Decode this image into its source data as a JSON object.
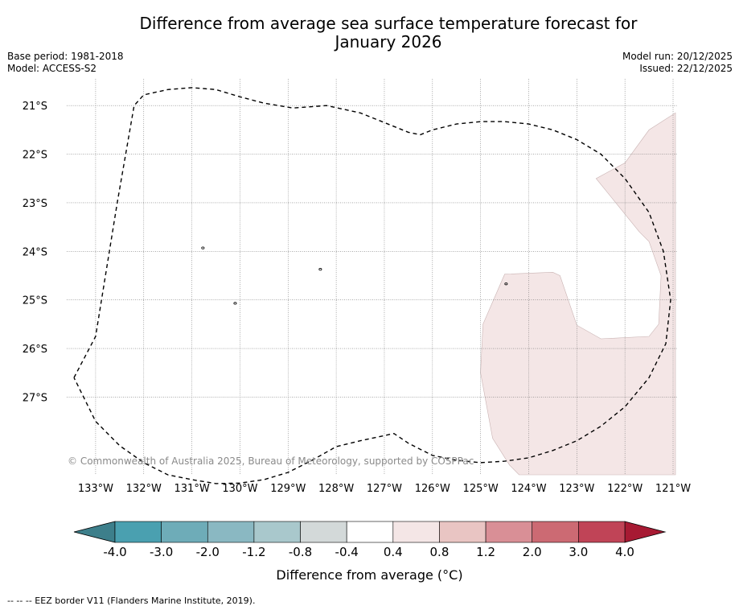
{
  "title_line1": "Difference from average sea surface temperature forecast for",
  "title_line2": "January 2026",
  "base_period": "Base period: 1981-2018",
  "model": "Model: ACCESS-S2",
  "model_run": "Model run: 20/12/2025",
  "issued": "Issued: 22/12/2025",
  "copyright": "© Commonwealth of Australia 2025, Bureau of Meteorology, supported by COSPPac",
  "map": {
    "lon_min": -133.6,
    "lon_max": -120.9,
    "lat_max": -20.45,
    "lat_min": -28.6,
    "lon_ticks": [
      {
        "value": -133,
        "label": "133°W"
      },
      {
        "value": -132,
        "label": "132°W"
      },
      {
        "value": -131,
        "label": "131°W"
      },
      {
        "value": -130,
        "label": "130°W"
      },
      {
        "value": -129,
        "label": "129°W"
      },
      {
        "value": -128,
        "label": "128°W"
      },
      {
        "value": -127,
        "label": "127°W"
      },
      {
        "value": -126,
        "label": "126°W"
      },
      {
        "value": -125,
        "label": "125°W"
      },
      {
        "value": -124,
        "label": "124°W"
      },
      {
        "value": -123,
        "label": "123°W"
      },
      {
        "value": -122,
        "label": "122°W"
      },
      {
        "value": -121,
        "label": "121°W"
      }
    ],
    "lat_ticks": [
      {
        "value": -21,
        "label": "21°S"
      },
      {
        "value": -22,
        "label": "22°S"
      },
      {
        "value": -23,
        "label": "23°S"
      },
      {
        "value": -24,
        "label": "24°S"
      },
      {
        "value": -25,
        "label": "25°S"
      },
      {
        "value": -26,
        "label": "26°S"
      },
      {
        "value": -27,
        "label": "27°S"
      }
    ],
    "anomaly_regions": [
      {
        "name": "east-warm-region",
        "class": "0.4 to 0.8",
        "color": "#f4e6e6",
        "coords": [
          [
            -122.0,
            -22.18
          ],
          [
            -121.5,
            -21.5
          ],
          [
            -120.95,
            -21.15
          ],
          [
            -120.95,
            -28.6
          ],
          [
            -124.2,
            -28.6
          ],
          [
            -124.4,
            -28.4
          ],
          [
            -124.75,
            -27.85
          ],
          [
            -125.0,
            -26.5
          ],
          [
            -124.95,
            -25.5
          ],
          [
            -124.5,
            -24.47
          ],
          [
            -123.5,
            -24.43
          ],
          [
            -123.35,
            -24.5
          ],
          [
            -123.0,
            -25.52
          ],
          [
            -122.5,
            -25.8
          ],
          [
            -121.5,
            -25.75
          ],
          [
            -121.3,
            -25.5
          ],
          [
            -121.25,
            -24.5
          ],
          [
            -121.5,
            -23.8
          ],
          [
            -121.7,
            -23.6
          ],
          [
            -122.6,
            -22.5
          ]
        ]
      }
    ],
    "islands": [
      {
        "name": "island-a",
        "lon": -130.77,
        "lat": -23.93
      },
      {
        "name": "island-b",
        "lon": -128.33,
        "lat": -24.37
      },
      {
        "name": "island-c",
        "lon": -130.1,
        "lat": -25.07
      },
      {
        "name": "island-d",
        "lon": -124.47,
        "lat": -24.67
      }
    ],
    "eez_border": [
      [
        -133.45,
        -26.6
      ],
      [
        -133.0,
        -25.75
      ],
      [
        -132.55,
        -23.0
      ],
      [
        -132.2,
        -21.0
      ],
      [
        -132.0,
        -20.78
      ],
      [
        -131.5,
        -20.67
      ],
      [
        -131.0,
        -20.63
      ],
      [
        -130.5,
        -20.67
      ],
      [
        -130.0,
        -20.82
      ],
      [
        -129.5,
        -20.95
      ],
      [
        -128.9,
        -21.05
      ],
      [
        -128.2,
        -21.0
      ],
      [
        -127.5,
        -21.15
      ],
      [
        -127.0,
        -21.35
      ],
      [
        -126.5,
        -21.55
      ],
      [
        -126.25,
        -21.6
      ],
      [
        -126.0,
        -21.5
      ],
      [
        -125.5,
        -21.38
      ],
      [
        -125.0,
        -21.33
      ],
      [
        -124.5,
        -21.33
      ],
      [
        -124.0,
        -21.38
      ],
      [
        -123.5,
        -21.5
      ],
      [
        -123.0,
        -21.7
      ],
      [
        -122.5,
        -22.0
      ],
      [
        -122.0,
        -22.5
      ],
      [
        -121.5,
        -23.2
      ],
      [
        -121.2,
        -24.0
      ],
      [
        -121.05,
        -25.0
      ],
      [
        -121.15,
        -25.9
      ],
      [
        -121.5,
        -26.6
      ],
      [
        -122.0,
        -27.2
      ],
      [
        -122.5,
        -27.6
      ],
      [
        -123.0,
        -27.9
      ],
      [
        -123.5,
        -28.1
      ],
      [
        -124.0,
        -28.25
      ],
      [
        -124.5,
        -28.32
      ],
      [
        -125.0,
        -28.35
      ],
      [
        -125.5,
        -28.3
      ],
      [
        -126.0,
        -28.2
      ],
      [
        -126.5,
        -27.95
      ],
      [
        -126.8,
        -27.75
      ],
      [
        -127.5,
        -27.9
      ],
      [
        -128.0,
        -28.02
      ],
      [
        -128.5,
        -28.3
      ],
      [
        -129.0,
        -28.55
      ],
      [
        -129.5,
        -28.7
      ],
      [
        -130.0,
        -28.77
      ],
      [
        -130.5,
        -28.78
      ],
      [
        -131.0,
        -28.7
      ],
      [
        -131.5,
        -28.6
      ],
      [
        -132.0,
        -28.35
      ],
      [
        -132.5,
        -28.0
      ],
      [
        -133.0,
        -27.5
      ],
      [
        -133.45,
        -26.6
      ]
    ]
  },
  "colorbar": {
    "label": "Difference from average (°C)",
    "under_color": "#3d7f8b",
    "over_color": "#a71a33",
    "bins": [
      {
        "color": "#4aa0b0"
      },
      {
        "color": "#6eacb8"
      },
      {
        "color": "#8ab8c2"
      },
      {
        "color": "#a9c8cc"
      },
      {
        "color": "#d3d9d9"
      },
      {
        "color": "#ffffff"
      },
      {
        "color": "#f4e6e6"
      },
      {
        "color": "#e9c5c3"
      },
      {
        "color": "#d98f96"
      },
      {
        "color": "#cc6a73"
      },
      {
        "color": "#c04457"
      }
    ],
    "tick_labels": [
      "-4.0",
      "-3.0",
      "-2.0",
      "-1.2",
      "-0.8",
      "-0.4",
      "0.4",
      "0.8",
      "1.2",
      "2.0",
      "3.0",
      "4.0"
    ]
  },
  "footer": "--  --  -- EEZ border V11 (Flanders Marine Institute, 2019)."
}
